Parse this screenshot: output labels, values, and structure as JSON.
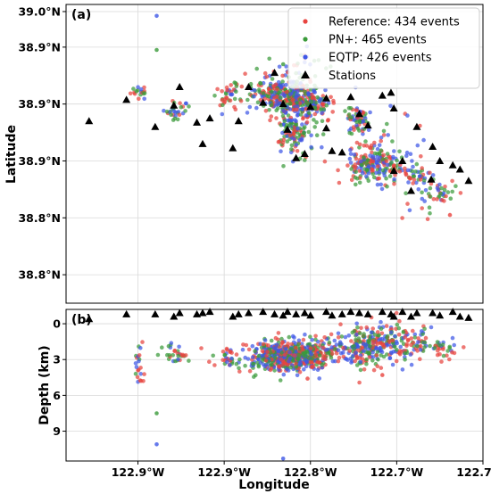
{
  "chart_data": [
    {
      "type": "scatter",
      "panel_label": "(a)",
      "xlabel": "",
      "ylabel": "Latitude",
      "xlim": [
        -122.98,
        -122.69
      ],
      "ylim": [
        38.76,
        38.97
      ],
      "x_tick_values": [
        -122.93,
        -122.87,
        -122.81,
        -122.75,
        -122.69
      ],
      "x_tick_labels": [
        "122.9°W",
        "122.9°W",
        "122.8°W",
        "122.7°W",
        "122.7°W"
      ],
      "y_tick_values": [
        38.78,
        38.82,
        38.86,
        38.9,
        38.94,
        38.965
      ],
      "y_tick_labels": [
        "38.8°N",
        "38.8°N",
        "38.9°N",
        "38.9°N",
        "38.9°N",
        "39.0°N"
      ],
      "grid": true,
      "legend_position": "top-right",
      "legend": [
        {
          "label": "Reference: 434 events",
          "color": "#e8443f",
          "marker": "circle"
        },
        {
          "label": "PN+: 465 events",
          "color": "#3a9a3a",
          "marker": "circle"
        },
        {
          "label": "EQTP: 426 events",
          "color": "#3f57e6",
          "marker": "circle"
        },
        {
          "label": "Stations",
          "color": "#000000",
          "marker": "triangle"
        }
      ],
      "stations": [
        [
          -122.964,
          38.888
        ],
        [
          -122.938,
          38.903
        ],
        [
          -122.918,
          38.884
        ],
        [
          -122.905,
          38.899
        ],
        [
          -122.901,
          38.912
        ],
        [
          -122.889,
          38.887
        ],
        [
          -122.885,
          38.872
        ],
        [
          -122.88,
          38.89
        ],
        [
          -122.864,
          38.869
        ],
        [
          -122.86,
          38.888
        ],
        [
          -122.853,
          38.912
        ],
        [
          -122.843,
          38.901
        ],
        [
          -122.835,
          38.922
        ],
        [
          -122.829,
          38.9
        ],
        [
          -122.826,
          38.882
        ],
        [
          -122.82,
          38.862
        ],
        [
          -122.814,
          38.865
        ],
        [
          -122.81,
          38.898
        ],
        [
          -122.799,
          38.904
        ],
        [
          -122.795,
          38.867
        ],
        [
          -122.788,
          38.866
        ],
        [
          -122.782,
          38.905
        ],
        [
          -122.776,
          38.893
        ],
        [
          -122.77,
          38.885
        ],
        [
          -122.76,
          38.906
        ],
        [
          -122.754,
          38.908
        ],
        [
          -122.752,
          38.853
        ],
        [
          -122.746,
          38.86
        ],
        [
          -122.74,
          38.839
        ],
        [
          -122.736,
          38.884
        ],
        [
          -122.725,
          38.87
        ],
        [
          -122.72,
          38.86
        ],
        [
          -122.711,
          38.857
        ],
        [
          -122.706,
          38.854
        ],
        [
          -122.7,
          38.846
        ],
        [
          -122.752,
          38.897
        ],
        [
          -122.799,
          38.883
        ],
        [
          -122.726,
          38.847
        ]
      ],
      "clusters": [
        {
          "cx": -122.929,
          "cy": 38.909,
          "sx": 0.003,
          "sy": 0.003,
          "n": 18
        },
        {
          "cx": -122.904,
          "cy": 38.896,
          "sx": 0.005,
          "sy": 0.003,
          "n": 30
        },
        {
          "cx": -122.866,
          "cy": 38.905,
          "sx": 0.006,
          "sy": 0.005,
          "n": 40
        },
        {
          "cx": -122.835,
          "cy": 38.907,
          "sx": 0.008,
          "sy": 0.007,
          "n": 180
        },
        {
          "cx": -122.82,
          "cy": 38.903,
          "sx": 0.008,
          "sy": 0.006,
          "n": 200
        },
        {
          "cx": -122.822,
          "cy": 38.88,
          "sx": 0.006,
          "sy": 0.007,
          "n": 110
        },
        {
          "cx": -122.805,
          "cy": 38.898,
          "sx": 0.006,
          "sy": 0.005,
          "n": 60
        },
        {
          "cx": -122.777,
          "cy": 38.889,
          "sx": 0.004,
          "sy": 0.005,
          "n": 60
        },
        {
          "cx": -122.772,
          "cy": 38.858,
          "sx": 0.006,
          "sy": 0.006,
          "n": 110
        },
        {
          "cx": -122.756,
          "cy": 38.856,
          "sx": 0.008,
          "sy": 0.006,
          "n": 90
        },
        {
          "cx": -122.736,
          "cy": 38.849,
          "sx": 0.006,
          "sy": 0.004,
          "n": 40
        },
        {
          "cx": -122.718,
          "cy": 38.838,
          "sx": 0.006,
          "sy": 0.004,
          "n": 30
        },
        {
          "cx": -122.81,
          "cy": 38.923,
          "sx": 0.012,
          "sy": 0.01,
          "n": 30
        },
        {
          "cx": -122.76,
          "cy": 38.878,
          "sx": 0.016,
          "sy": 0.014,
          "n": 35
        },
        {
          "cx": -122.73,
          "cy": 38.828,
          "sx": 0.008,
          "sy": 0.006,
          "n": 12
        }
      ],
      "outliers": [
        {
          "x": -122.917,
          "y": 38.962,
          "color": "#3f57e6"
        },
        {
          "x": -122.917,
          "y": 38.938,
          "color": "#3a9a3a"
        },
        {
          "x": -122.829,
          "y": 38.928,
          "color": "#3a9a3a"
        },
        {
          "x": -122.713,
          "y": 38.822,
          "color": "#e8443f"
        }
      ]
    },
    {
      "type": "scatter",
      "panel_label": "(b)",
      "xlabel": "Longitude",
      "ylabel": "Depth (km)",
      "xlim": [
        -122.98,
        -122.69
      ],
      "ylim": [
        11.5,
        -1.2
      ],
      "x_tick_values": [
        -122.93,
        -122.87,
        -122.81,
        -122.75,
        -122.69
      ],
      "x_tick_labels": [
        "122.9°W",
        "122.9°W",
        "122.8°W",
        "122.7°W",
        "122.7°W"
      ],
      "y_tick_values": [
        0,
        3,
        6,
        9
      ],
      "y_tick_labels": [
        "0",
        "3",
        "6",
        "9"
      ],
      "grid": true,
      "stations": [
        [
          -122.964,
          -0.4
        ],
        [
          -122.938,
          -0.8
        ],
        [
          -122.918,
          -0.8
        ],
        [
          -122.905,
          -0.6
        ],
        [
          -122.901,
          -0.9
        ],
        [
          -122.889,
          -0.8
        ],
        [
          -122.885,
          -0.9
        ],
        [
          -122.88,
          -1.0
        ],
        [
          -122.864,
          -0.6
        ],
        [
          -122.86,
          -0.8
        ],
        [
          -122.853,
          -0.9
        ],
        [
          -122.843,
          -1.0
        ],
        [
          -122.835,
          -0.8
        ],
        [
          -122.829,
          -0.7
        ],
        [
          -122.826,
          -1.0
        ],
        [
          -122.82,
          -0.8
        ],
        [
          -122.814,
          -0.9
        ],
        [
          -122.81,
          -0.7
        ],
        [
          -122.799,
          -1.0
        ],
        [
          -122.795,
          -0.7
        ],
        [
          -122.788,
          -0.8
        ],
        [
          -122.782,
          -1.0
        ],
        [
          -122.776,
          -0.9
        ],
        [
          -122.77,
          -0.8
        ],
        [
          -122.76,
          -1.0
        ],
        [
          -122.754,
          -0.8
        ],
        [
          -122.752,
          -0.6
        ],
        [
          -122.746,
          -1.0
        ],
        [
          -122.74,
          -0.6
        ],
        [
          -122.736,
          -0.9
        ],
        [
          -122.725,
          -0.9
        ],
        [
          -122.72,
          -0.7
        ],
        [
          -122.711,
          -1.0
        ],
        [
          -122.706,
          -0.6
        ],
        [
          -122.7,
          -0.5
        ]
      ],
      "clusters": [
        {
          "cx": -122.929,
          "cy": 3.6,
          "sx": 0.002,
          "sy": 0.8,
          "n": 22
        },
        {
          "cx": -122.904,
          "cy": 2.7,
          "sx": 0.005,
          "sy": 0.5,
          "n": 30
        },
        {
          "cx": -122.866,
          "cy": 2.8,
          "sx": 0.006,
          "sy": 0.5,
          "n": 40
        },
        {
          "cx": -122.833,
          "cy": 2.8,
          "sx": 0.01,
          "sy": 0.6,
          "n": 300
        },
        {
          "cx": -122.815,
          "cy": 2.6,
          "sx": 0.008,
          "sy": 0.6,
          "n": 260
        },
        {
          "cx": -122.79,
          "cy": 2.2,
          "sx": 0.01,
          "sy": 0.7,
          "n": 80
        },
        {
          "cx": -122.772,
          "cy": 1.9,
          "sx": 0.007,
          "sy": 0.8,
          "n": 130
        },
        {
          "cx": -122.755,
          "cy": 1.6,
          "sx": 0.008,
          "sy": 0.8,
          "n": 110
        },
        {
          "cx": -122.735,
          "cy": 1.7,
          "sx": 0.007,
          "sy": 0.7,
          "n": 50
        },
        {
          "cx": -122.717,
          "cy": 2.1,
          "sx": 0.006,
          "sy": 0.6,
          "n": 30
        }
      ],
      "outliers": [
        {
          "x": -122.917,
          "y": 7.5,
          "color": "#3a9a3a"
        },
        {
          "x": -122.917,
          "y": 10.1,
          "color": "#3f57e6"
        },
        {
          "x": -122.829,
          "y": 11.3,
          "color": "#3f57e6"
        },
        {
          "x": -122.812,
          "y": 4.6,
          "color": "#e8443f"
        },
        {
          "x": -122.76,
          "y": 4.3,
          "color": "#e8443f"
        }
      ]
    }
  ],
  "series_colors": {
    "reference": "#e8443f",
    "pn_plus": "#3a9a3a",
    "eqtp": "#3f57e6",
    "stations": "#000000"
  }
}
